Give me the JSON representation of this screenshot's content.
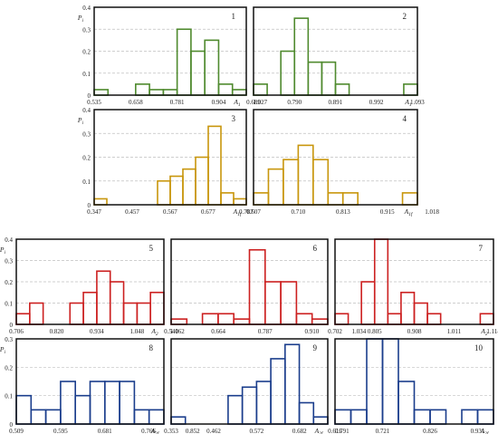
{
  "ylabel": "P",
  "chart_data": [
    {
      "type": "bar",
      "panel": "1",
      "color": "#4f8a2e",
      "ylabel_sub": "i",
      "xlabel_sub": "1",
      "ylim": [
        0,
        0.4
      ],
      "yticks": [
        "0",
        "0.1",
        "0.2",
        "0.3",
        "0.4"
      ],
      "xticks": [
        "0.535",
        "0.658",
        "0.781",
        "0.904",
        "1.027"
      ],
      "xlabel": "A",
      "bin_start": 0.535,
      "bin_width": 0.041,
      "values": [
        0.025,
        0,
        0,
        0.05,
        0.025,
        0.025,
        0.3,
        0.2,
        0.25,
        0.05,
        0.025
      ]
    },
    {
      "type": "bar",
      "panel": "2",
      "color": "#4f8a2e",
      "ylabel_sub": "",
      "xlabel_sub": "1",
      "ylim": [
        0,
        0.4
      ],
      "yticks": [],
      "xticks": [
        "0.689",
        "0.790",
        "0.891",
        "0.992",
        "1.093"
      ],
      "xlabel": "A",
      "bin_start": 0.689,
      "bin_width": 0.0337,
      "values": [
        0.05,
        0,
        0.2,
        0.35,
        0.15,
        0.15,
        0.05,
        0,
        0,
        0,
        0,
        0.05
      ]
    },
    {
      "type": "bar",
      "panel": "3",
      "color": "#c8960c",
      "ylabel_sub": "i",
      "xlabel_sub": "1f",
      "ylim": [
        0,
        0.4
      ],
      "yticks": [
        "0",
        "0.1",
        "0.2",
        "0.3",
        "0.4"
      ],
      "xticks": [
        "0.347",
        "0.457",
        "0.567",
        "0.677",
        "0.787"
      ],
      "xlabel": "A",
      "bin_start": 0.347,
      "bin_width": 0.0367,
      "values": [
        0.025,
        0,
        0,
        0,
        0,
        0.1,
        0.12,
        0.15,
        0.2,
        0.33,
        0.05,
        0.025
      ]
    },
    {
      "type": "bar",
      "panel": "4",
      "color": "#c8960c",
      "ylabel_sub": "",
      "xlabel_sub": "1f",
      "ylim": [
        0,
        0.4
      ],
      "yticks": [],
      "xticks": [
        "0.607",
        "0.710",
        "0.813",
        "0.915",
        "1.018"
      ],
      "xlabel": "A",
      "bin_start": 0.607,
      "bin_width": 0.0343,
      "values": [
        0.05,
        0.15,
        0.19,
        0.25,
        0.19,
        0.05,
        0.05,
        0,
        0,
        0,
        0.05
      ]
    },
    {
      "type": "bar",
      "panel": "5",
      "color": "#cc2020",
      "ylabel_sub": "i",
      "xlabel_sub": "2",
      "ylim": [
        0,
        0.4
      ],
      "yticks": [
        "0",
        "0.1",
        "0.2",
        "0.3",
        "0.4"
      ],
      "xticks": [
        "0.706",
        "0.820",
        "0.934",
        "1.048",
        "1.162"
      ],
      "xlabel": "A",
      "bin_start": 0.706,
      "bin_width": 0.038,
      "values": [
        0.05,
        0.1,
        0,
        0,
        0.1,
        0.15,
        0.25,
        0.2,
        0.1,
        0.1,
        0.15
      ]
    },
    {
      "type": "bar",
      "panel": "6",
      "color": "#cc2020",
      "ylabel_sub": "",
      "xlabel_sub": "",
      "ylim": [
        0,
        0.4
      ],
      "yticks": [],
      "xticks": [
        "0.540",
        "0.664",
        "0.787",
        "0.910",
        "1.034"
      ],
      "xlabel": "",
      "bin_start": 0.54,
      "bin_width": 0.0412,
      "values": [
        0.025,
        0,
        0.05,
        0.05,
        0.025,
        0.35,
        0.2,
        0.2,
        0.05,
        0.025
      ]
    },
    {
      "type": "bar",
      "panel": "7",
      "color": "#cc2020",
      "ylabel_sub": "",
      "xlabel_sub": "2",
      "ylim": [
        0,
        0.4
      ],
      "yticks": [],
      "xticks": [
        "0.702",
        "0.805",
        "0.908",
        "1.011",
        "1.114"
      ],
      "xlabel": "A",
      "bin_start": 0.702,
      "bin_width": 0.0343,
      "values": [
        0.05,
        0,
        0.2,
        0.4,
        0.05,
        0.15,
        0.1,
        0.05,
        0,
        0,
        0,
        0.05
      ]
    },
    {
      "type": "bar",
      "panel": "8",
      "color": "#1a3d8c",
      "ylabel_sub": "i",
      "xlabel_sub": "2f",
      "ylim": [
        0,
        0.3
      ],
      "yticks": [
        "0",
        "0.1",
        "0.2",
        "0.3"
      ],
      "xticks": [
        "0.509",
        "0.595",
        "0.681",
        "0.766",
        "0.852"
      ],
      "xlabel": "A",
      "bin_start": 0.509,
      "bin_width": 0.0287,
      "values": [
        0.1,
        0.05,
        0.05,
        0.15,
        0.1,
        0.15,
        0.15,
        0.15,
        0.05,
        0.05
      ]
    },
    {
      "type": "bar",
      "panel": "9",
      "color": "#1a3d8c",
      "ylabel_sub": "",
      "xlabel_sub": "2f",
      "ylim": [
        0,
        0.3
      ],
      "yticks": [],
      "xticks": [
        "0.353",
        "0.462",
        "0.572",
        "0.682",
        "0.791"
      ],
      "xlabel": "A",
      "bin_start": 0.353,
      "bin_width": 0.0365,
      "values": [
        0.025,
        0,
        0,
        0,
        0.1,
        0.13,
        0.15,
        0.23,
        0.28,
        0.075,
        0.025
      ]
    },
    {
      "type": "bar",
      "panel": "10",
      "color": "#1a3d8c",
      "ylabel_sub": "",
      "xlabel_sub": "2f",
      "ylim": [
        0,
        0.3
      ],
      "yticks": [],
      "xticks": [
        "0.616",
        "0.721",
        "0.826",
        "0.931",
        "1.037"
      ],
      "xlabel": "A",
      "bin_start": 0.616,
      "bin_width": 0.035,
      "values": [
        0.05,
        0.05,
        0.3,
        0.3,
        0.15,
        0.05,
        0.05,
        0,
        0.05,
        0.05
      ]
    }
  ]
}
